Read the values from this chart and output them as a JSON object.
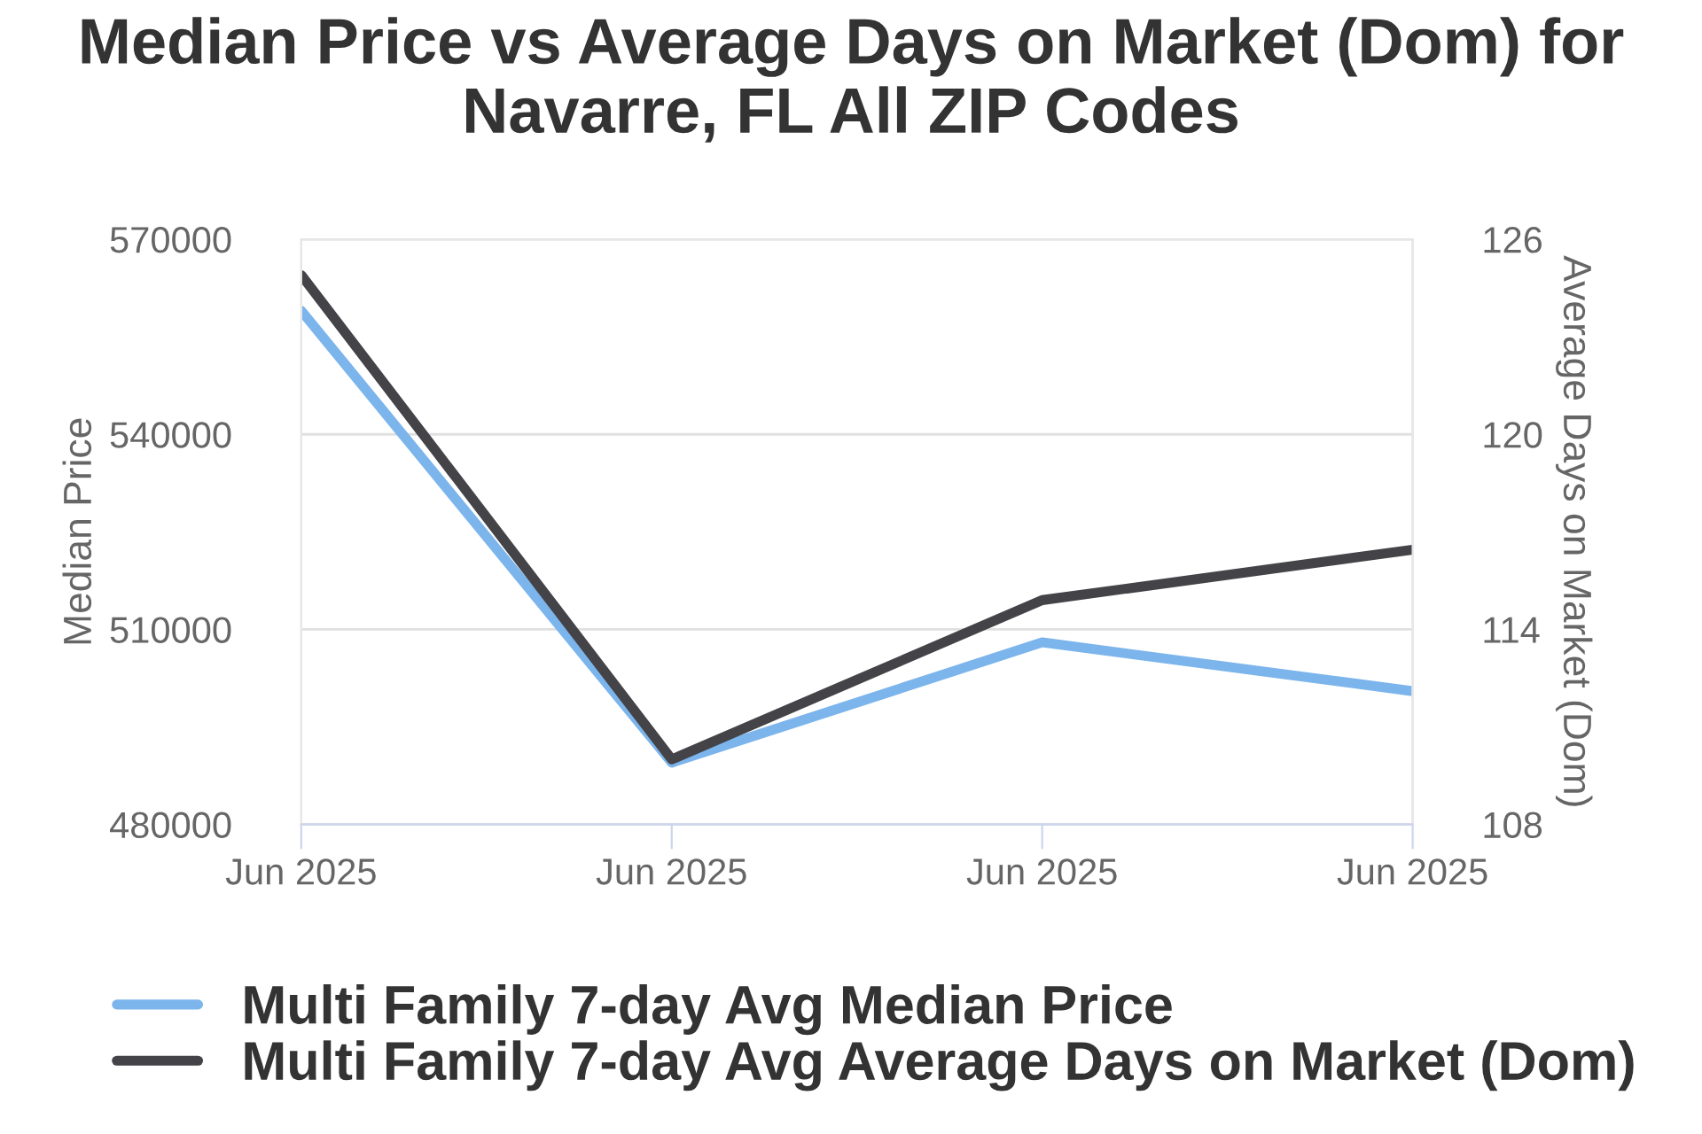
{
  "chart_data": {
    "type": "line",
    "title": "Median Price vs Average Days on Market (Dom) for Navarre, FL All ZIP Codes",
    "categories": [
      "Jun 2025",
      "Jun 2025",
      "Jun 2025",
      "Jun 2025"
    ],
    "ylabel": "Median Price",
    "y2label": "Average Days on Market (Dom)",
    "ylim": [
      480000,
      570000
    ],
    "yticks": [
      480000,
      510000,
      540000,
      570000
    ],
    "y2lim": [
      108,
      126
    ],
    "y2ticks": [
      108,
      114,
      120,
      126
    ],
    "grid": "y",
    "legend": "bottom",
    "marker": "none",
    "line_style": "solid",
    "series": [
      {
        "name": "Multi Family 7-day Avg Median Price",
        "color": "#7cb5ec",
        "values": [
          559000,
          489500,
          508000,
          500500
        ]
      },
      {
        "name": "Multi Family 7-day Avg Average Days on Market (Dom)",
        "color": "#434348",
        "axis": "y2",
        "values": [
          124.9,
          110.0,
          114.9,
          116.45
        ]
      }
    ]
  }
}
